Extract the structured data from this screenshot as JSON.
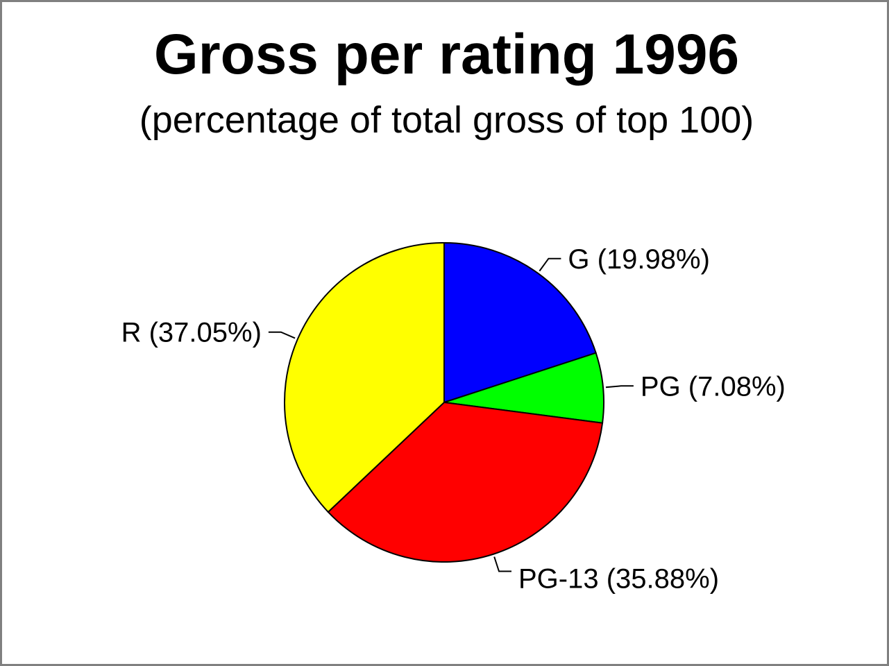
{
  "chart_data": {
    "type": "pie",
    "title": "Gross per rating 1996",
    "subtitle": "(percentage of total gross of top 100)",
    "categories": [
      "G",
      "PG",
      "PG-13",
      "R"
    ],
    "values": [
      19.98,
      7.08,
      35.88,
      37.05
    ],
    "labels": [
      "G (19.98%)",
      "PG (7.08%)",
      "PG-13 (35.88%)",
      "R (37.05%)"
    ],
    "colors": [
      "#0000ff",
      "#00ff00",
      "#ff0000",
      "#ffff00"
    ],
    "start_angle": "top",
    "direction": "clockwise",
    "legend": "none"
  }
}
